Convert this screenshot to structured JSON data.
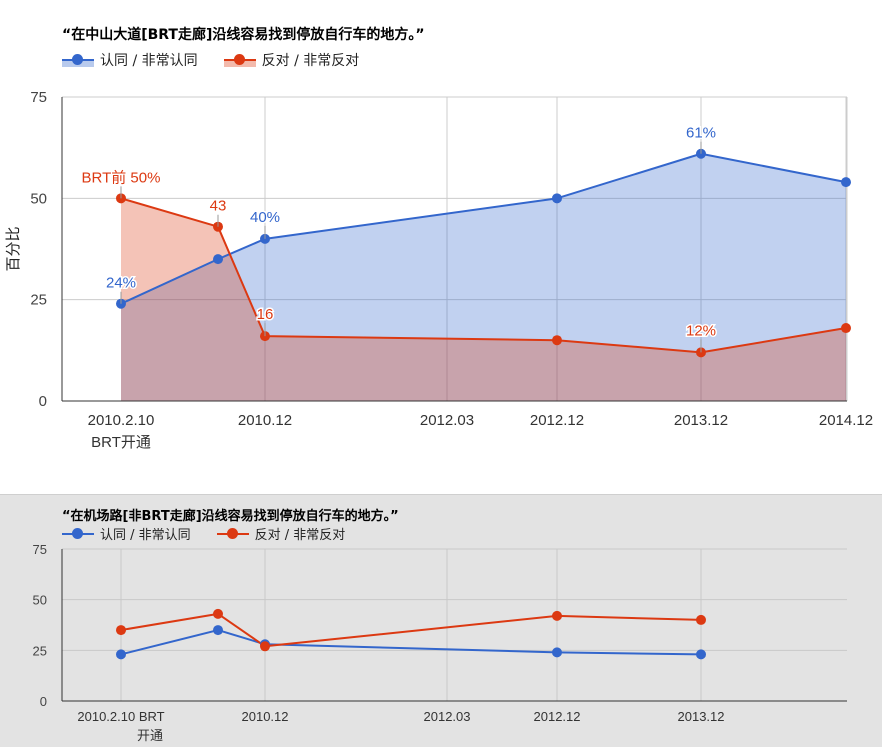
{
  "colors": {
    "agree": "#3366cc",
    "oppose": "#dc3912",
    "agree_fill": "#3366cc",
    "oppose_fill": "#dc3912"
  },
  "chart_data": [
    {
      "type": "area",
      "title": "“在中山大道[BRT走廊]沿线容易找到停放自行车的地方。”",
      "ylabel": "百分比",
      "xlabel": "",
      "ylim": [
        0,
        75
      ],
      "yticks": [
        "0",
        "25",
        "50",
        "75"
      ],
      "grid": true,
      "legend_position": "top-left",
      "categories": [
        "2010.2.10",
        "",
        "2010.12",
        "2012.03",
        "2012.12",
        "2013.12",
        "2014.12"
      ],
      "category_sublabels": [
        "BRT开通",
        "",
        "",
        "",
        "",
        "",
        ""
      ],
      "series": [
        {
          "name": "认同 / 非常认同",
          "values": [
            24,
            35,
            40,
            null,
            50,
            61,
            54
          ],
          "data_labels": [
            "24%",
            "",
            "40%",
            "",
            "",
            "61%",
            ""
          ]
        },
        {
          "name": "反对 / 非常反对",
          "values": [
            50,
            43,
            16,
            null,
            15,
            12,
            18
          ],
          "data_labels": [
            "BRT前 50%",
            "43",
            "16",
            "",
            "",
            "12%",
            ""
          ]
        }
      ]
    },
    {
      "type": "line",
      "title": "“在机场路[非BRT走廊]沿线容易找到停放自行车的地方。”",
      "xlabel": "",
      "ylabel": "",
      "ylim": [
        0,
        75
      ],
      "yticks": [
        "0",
        "25",
        "50",
        "75"
      ],
      "grid": true,
      "legend_position": "top-left",
      "categories": [
        "2010.2.10 BRT",
        "",
        "2010.12",
        "2012.03",
        "2012.12",
        "2013.12"
      ],
      "category_sublabels": [
        "开通",
        "",
        "",
        "",
        "",
        ""
      ],
      "series": [
        {
          "name": "认同 / 非常认同",
          "values": [
            23,
            35,
            28,
            null,
            24,
            23
          ]
        },
        {
          "name": "反对 / 非常反对",
          "values": [
            35,
            43,
            27,
            null,
            42,
            40
          ]
        }
      ]
    }
  ]
}
